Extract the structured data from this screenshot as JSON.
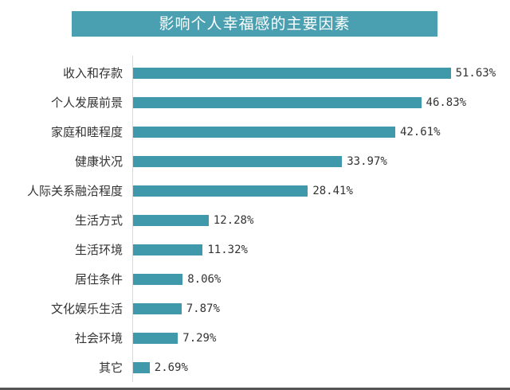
{
  "chart_data": {
    "type": "bar",
    "orientation": "horizontal",
    "title": "影响个人幸福感的主要因素",
    "xlabel": "",
    "ylabel": "",
    "grid": false,
    "legend": null,
    "unit": "%",
    "categories": [
      "收入和存款",
      "个人发展前景",
      "家庭和睦程度",
      "健康状况",
      "人际关系融洽程度",
      "生活方式",
      "生活环境",
      "居住条件",
      "文化娱乐生活",
      "社会环境",
      "其它"
    ],
    "values": [
      51.63,
      46.83,
      42.61,
      33.97,
      28.41,
      12.28,
      11.32,
      8.06,
      7.87,
      7.29,
      2.69
    ],
    "value_labels": [
      "51.63%",
      "46.83%",
      "42.61%",
      "33.97%",
      "28.41%",
      "12.28%",
      "11.32%",
      "8.06%",
      "7.87%",
      "7.29%",
      "2.69%"
    ],
    "bar_color": "#3f99ab",
    "title_bg_color": "#4a9fb0"
  }
}
